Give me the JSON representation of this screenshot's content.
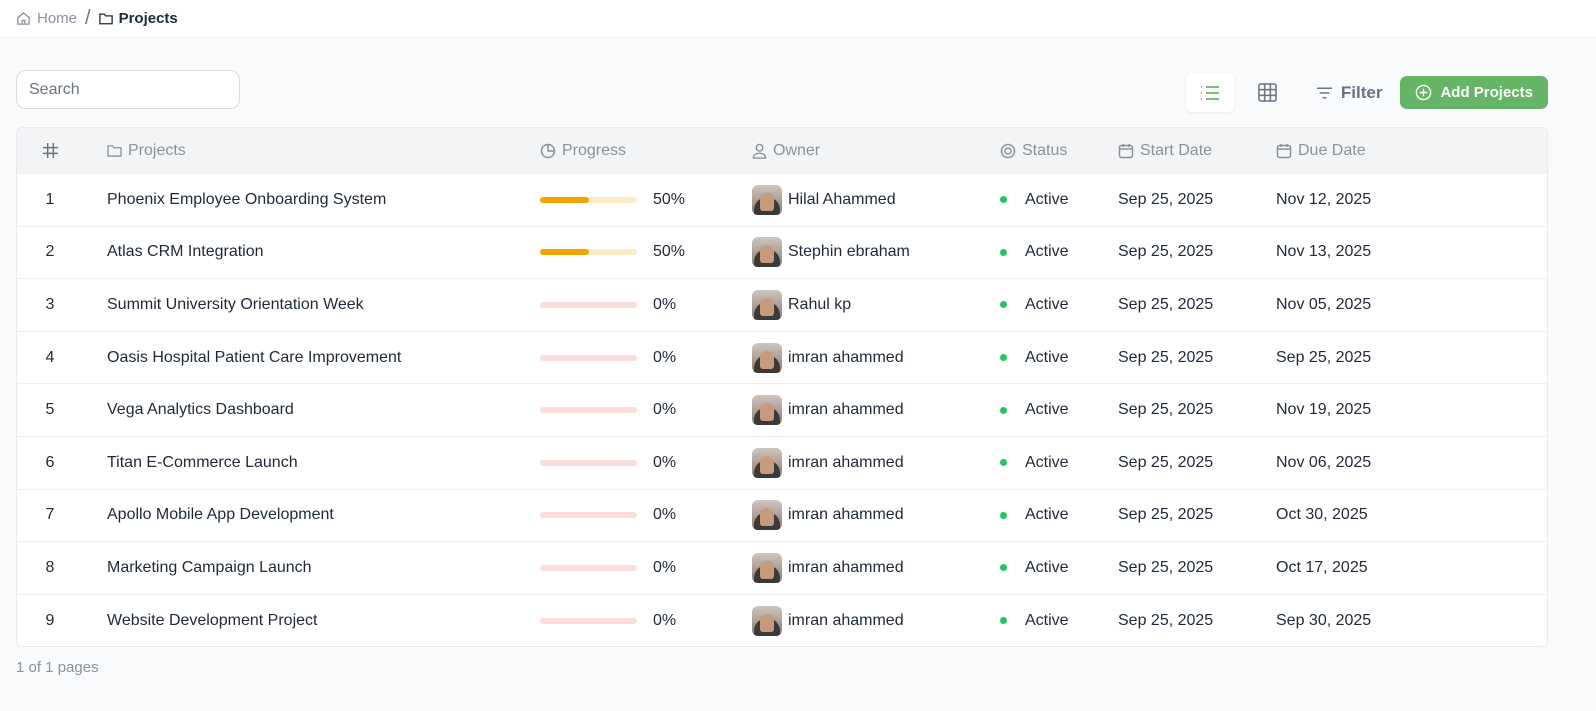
{
  "breadcrumb": {
    "home": "Home",
    "separator": "/",
    "current": "Projects"
  },
  "search": {
    "placeholder": "Search",
    "value": ""
  },
  "toolbar": {
    "filter_label": "Filter",
    "add_label": "Add Projects",
    "active_view": "list",
    "accent": "#66b567"
  },
  "columns": [
    "#",
    "Projects",
    "Progress",
    "Owner",
    "Status",
    "Start Date",
    "Due Date"
  ],
  "rows": [
    {
      "n": "1",
      "name": "Phoenix Employee Onboarding System",
      "progress": 50,
      "progress_label": "50%",
      "owner": "Hilal Ahammed",
      "status": "Active",
      "start": "Sep 25, 2025",
      "due": "Nov 12, 2025"
    },
    {
      "n": "2",
      "name": "Atlas CRM Integration",
      "progress": 50,
      "progress_label": "50%",
      "owner": "Stephin ebraham",
      "status": "Active",
      "start": "Sep 25, 2025",
      "due": "Nov 13, 2025"
    },
    {
      "n": "3",
      "name": "Summit University Orientation Week",
      "progress": 0,
      "progress_label": "0%",
      "owner": "Rahul kp",
      "status": "Active",
      "start": "Sep 25, 2025",
      "due": "Nov 05, 2025"
    },
    {
      "n": "4",
      "name": "Oasis Hospital Patient Care Improvement",
      "progress": 0,
      "progress_label": "0%",
      "owner": "imran ahammed",
      "status": "Active",
      "start": "Sep 25, 2025",
      "due": "Sep 25, 2025"
    },
    {
      "n": "5",
      "name": "Vega Analytics Dashboard",
      "progress": 0,
      "progress_label": "0%",
      "owner": "imran ahammed",
      "status": "Active",
      "start": "Sep 25, 2025",
      "due": "Nov 19, 2025"
    },
    {
      "n": "6",
      "name": "Titan E-Commerce Launch",
      "progress": 0,
      "progress_label": "0%",
      "owner": "imran ahammed",
      "status": "Active",
      "start": "Sep 25, 2025",
      "due": "Nov 06, 2025"
    },
    {
      "n": "7",
      "name": "Apollo Mobile App Development",
      "progress": 0,
      "progress_label": "0%",
      "owner": "imran ahammed",
      "status": "Active",
      "start": "Sep 25, 2025",
      "due": "Oct 30, 2025"
    },
    {
      "n": "8",
      "name": "Marketing Campaign Launch",
      "progress": 0,
      "progress_label": "0%",
      "owner": "imran ahammed",
      "status": "Active",
      "start": "Sep 25, 2025",
      "due": "Oct 17, 2025"
    },
    {
      "n": "9",
      "name": "Website Development Project",
      "progress": 0,
      "progress_label": "0%",
      "owner": "imran ahammed",
      "status": "Active",
      "start": "Sep 25, 2025",
      "due": "Sep 30, 2025"
    }
  ],
  "colors": {
    "progress_fill": "#f0a500",
    "progress_track_partial": "#fdebc8",
    "progress_track_empty": "#fbdcdc",
    "status_active": "#22c55e"
  },
  "pagination": "1 of 1 pages"
}
